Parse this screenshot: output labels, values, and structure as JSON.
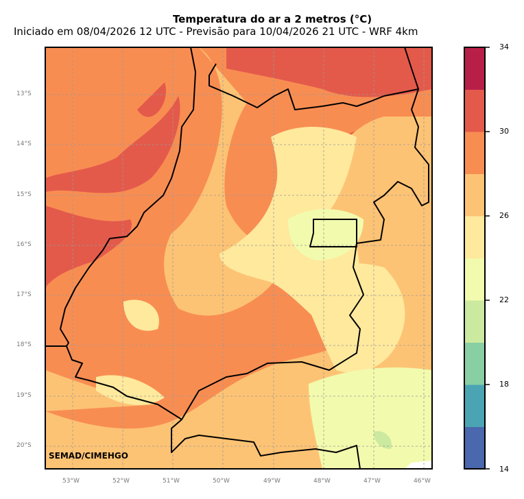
{
  "title": "Temperatura do ar a 2 metros (°C)",
  "subtitle": "Iniciado em 08/04/2026 12 UTC - Previsão para 10/04/2026 21 UTC - WRF 4km",
  "credit": "SEMAD/CIMEHGO",
  "lat_ticks": [
    "13°S",
    "14°S",
    "15°S",
    "16°S",
    "17°S",
    "18°S",
    "19°S",
    "20°S"
  ],
  "lon_ticks": [
    "53°W",
    "52°W",
    "51°W",
    "50°W",
    "49°W",
    "48°W",
    "47°W",
    "46°W"
  ],
  "colorbar": {
    "min": 14,
    "max": 34,
    "step": 2,
    "labels": [
      "34",
      "30",
      "26",
      "22",
      "18",
      "14"
    ],
    "colors": [
      "#4a68ae",
      "#4aa4b3",
      "#88cfa4",
      "#cbe99f",
      "#f2faad",
      "#fee99d",
      "#fdc374",
      "#f88d52",
      "#e35a4b",
      "#b81f48"
    ]
  }
}
